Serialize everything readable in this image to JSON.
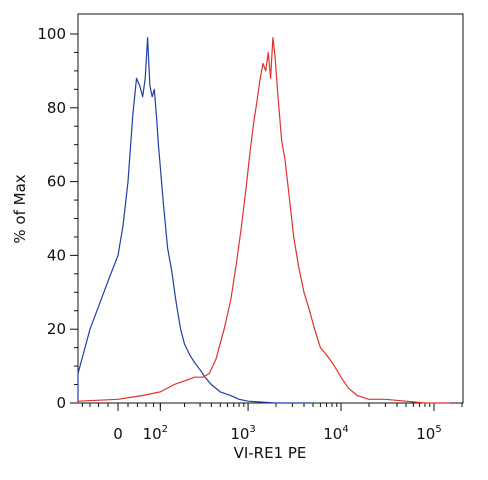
{
  "chart_data": {
    "type": "line",
    "title": "",
    "xlabel": "VI-RE1 PE",
    "ylabel": "% of Max",
    "x_scale": "biexponential",
    "xlim": [
      -600,
      250000
    ],
    "ylim": [
      0,
      105
    ],
    "x_ticks": [
      {
        "value": 0,
        "base": "0",
        "exp": ""
      },
      {
        "value": 100,
        "base": "10",
        "exp": "2"
      },
      {
        "value": 1000,
        "base": "10",
        "exp": "3"
      },
      {
        "value": 10000,
        "base": "10",
        "exp": "4"
      },
      {
        "value": 100000,
        "base": "10",
        "exp": "5"
      }
    ],
    "y_ticks": [
      0,
      20,
      40,
      60,
      80,
      100
    ],
    "grid": false,
    "legend": "none",
    "series": [
      {
        "color": "#1f3fa6",
        "x": [
          -400,
          -300,
          -200,
          -120,
          -60,
          -20,
          0,
          10,
          20,
          30,
          38,
          45,
          52,
          58,
          64,
          70,
          76,
          82,
          88,
          94,
          100,
          110,
          125,
          140,
          160,
          180,
          200,
          230,
          260,
          300,
          340,
          400,
          500,
          650,
          800,
          1000,
          2000,
          5000
        ],
        "y": [
          0,
          1,
          3,
          8,
          20,
          33,
          40,
          48,
          60,
          78,
          88,
          86,
          83,
          88,
          99,
          86,
          83,
          85,
          78,
          70,
          64,
          54,
          42,
          36,
          27,
          20,
          16,
          13,
          11,
          9,
          7,
          5,
          3,
          2,
          1,
          0.5,
          0,
          0
        ]
      },
      {
        "color": "#e0322b",
        "x": [
          -300,
          -200,
          0,
          50,
          100,
          150,
          200,
          260,
          320,
          380,
          450,
          550,
          650,
          750,
          850,
          950,
          1050,
          1150,
          1250,
          1350,
          1450,
          1550,
          1650,
          1750,
          1850,
          1950,
          2100,
          2300,
          2500,
          2800,
          3100,
          3500,
          4000,
          4600,
          5200,
          6000,
          7000,
          8000,
          9000,
          10000,
          12000,
          15000,
          20000,
          30000,
          50000,
          80000,
          150000
        ],
        "y": [
          0,
          0.5,
          1,
          2,
          3,
          5,
          6,
          7,
          7,
          8,
          12,
          20,
          28,
          38,
          48,
          58,
          68,
          76,
          82,
          88,
          92,
          90,
          95,
          88,
          99,
          94,
          83,
          71,
          66,
          55,
          45,
          37,
          30,
          25,
          20,
          15,
          13,
          11,
          9,
          7,
          4,
          2,
          1,
          1,
          0.5,
          0,
          0
        ]
      }
    ]
  }
}
